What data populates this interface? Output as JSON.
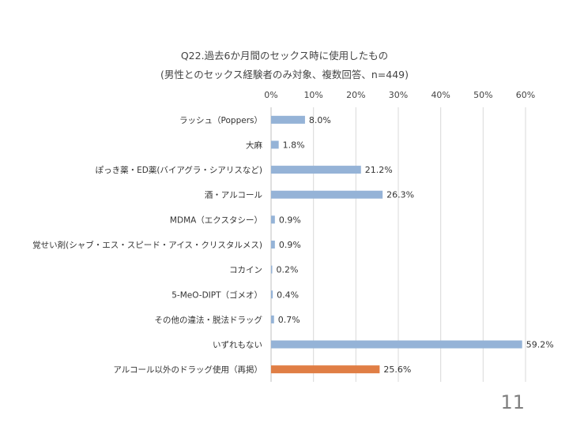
{
  "chart_data": {
    "type": "bar",
    "orientation": "horizontal",
    "title": "Q22.過去6か月間のセックス時に使用したもの",
    "subtitle": "(男性とのセックス経験者のみ対象、複数回答、n=449)",
    "xlim": [
      0,
      60
    ],
    "x_ticks": [
      "0%",
      "10%",
      "20%",
      "30%",
      "40%",
      "50%",
      "60%"
    ],
    "x_tick_values": [
      0,
      10,
      20,
      30,
      40,
      50,
      60
    ],
    "x_axis_position": "top",
    "grid": true,
    "categories": [
      "ラッシュ（Poppers）",
      "大麻",
      "ぽっき薬・ED薬(バイアグラ・シアリスなど)",
      "酒・アルコール",
      "MDMA（エクスタシー）",
      "覚せい剤(シャブ・エス・スピード・アイス・クリスタルメス)",
      "コカイン",
      "5-MeO-DIPT（ゴメオ）",
      "その他の違法・脱法ドラッグ",
      "いずれもない",
      "アルコール以外のドラッグ使用（再掲）"
    ],
    "values": [
      8.0,
      1.8,
      21.2,
      26.3,
      0.9,
      0.9,
      0.2,
      0.4,
      0.7,
      59.2,
      25.6
    ],
    "value_labels": [
      "8.0%",
      "1.8%",
      "21.2%",
      "26.3%",
      "0.9%",
      "0.9%",
      "0.2%",
      "0.4%",
      "0.7%",
      "59.2%",
      "25.6%"
    ],
    "highlight_index": 10,
    "colors": {
      "bar": "#95b3d7",
      "highlight": "#e07e45",
      "grid": "#d9d9d9"
    }
  },
  "page_number": "11"
}
